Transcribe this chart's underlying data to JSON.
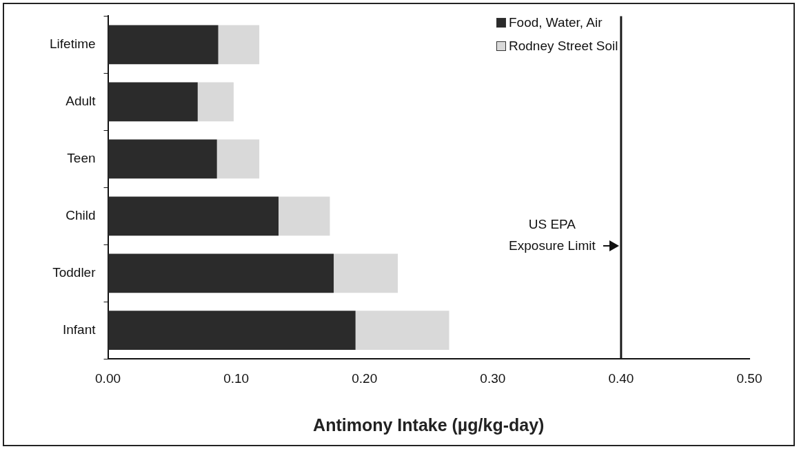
{
  "chart_data": {
    "type": "bar",
    "orientation": "horizontal",
    "stacked": true,
    "xlabel": "Antimony Intake (µg/kg-day)",
    "categories": [
      "Lifetime",
      "Adult",
      "Teen",
      "Child",
      "Toddler",
      "Infant"
    ],
    "series": [
      {
        "name": "Food, Water, Air",
        "color": "#2b2b2b",
        "values": [
          0.086,
          0.07,
          0.085,
          0.133,
          0.176,
          0.193
        ]
      },
      {
        "name": "Rodney Street Soil",
        "color": "#d9d9d9",
        "values": [
          0.032,
          0.028,
          0.033,
          0.04,
          0.05,
          0.073
        ]
      }
    ],
    "xlim": [
      0,
      0.5
    ],
    "xticks": [
      {
        "value": 0,
        "label": "0.00"
      },
      {
        "value": 0.1,
        "label": "0.10"
      },
      {
        "value": 0.2,
        "label": "0.20"
      },
      {
        "value": 0.3,
        "label": "0.30"
      },
      {
        "value": 0.4,
        "label": "0.40"
      },
      {
        "value": 0.5,
        "label": "0.50"
      }
    ],
    "ref_lines": [
      {
        "axis": "x",
        "value": 0.4,
        "label": "US EPA Exposure Limit",
        "color": "#1a1a1a"
      }
    ],
    "grid": false,
    "legend": "top right"
  }
}
